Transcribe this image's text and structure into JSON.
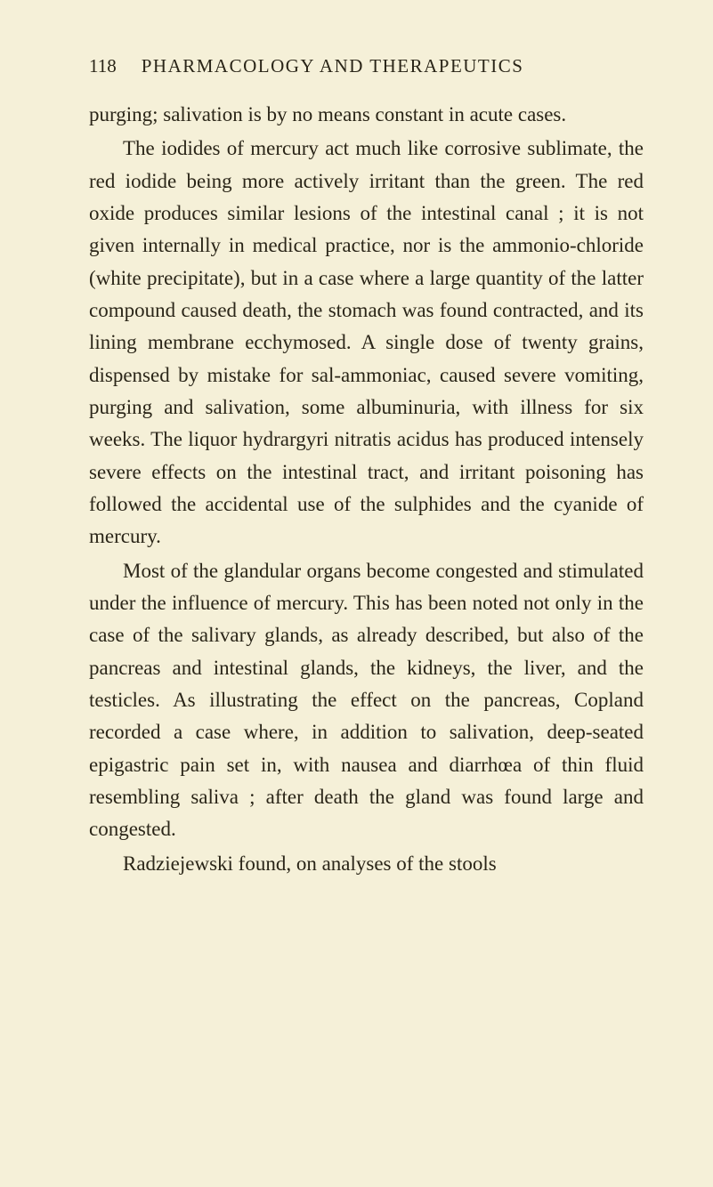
{
  "page": {
    "number": "118",
    "runningTitle": "PHARMACOLOGY AND THERAPEUTICS"
  },
  "paragraphs": {
    "p1": "purging; salivation is by no means constant in acute cases.",
    "p2": "The iodides of mercury act much like corrosive sublimate, the red iodide being more actively irritant than the green. The red oxide produces similar lesions of the intestinal canal ; it is not given internally in medical practice, nor is the ammonio-chloride (white precipitate), but in a case where a large quantity of the latter compound caused death, the stomach was found contracted, and its lining membrane ecchymosed. A single dose of twenty grains, dispensed by mistake for sal-ammoniac, caused severe vomiting, purging and salivation, some albuminuria, with illness for six weeks. The liquor hydrargyri nitratis acidus has produced intensely severe effects on the intestinal tract, and irritant poisoning has followed the accidental use of the sulphides and the cyanide of mercury.",
    "p3": "Most of the glandular organs become congested and stimulated under the influence of mercury. This has been noted not only in the case of the salivary glands, as already described, but also of the pancreas and intestinal glands, the kidneys, the liver, and the testicles. As illustrating the effect on the pancreas, Copland recorded a case where, in addition to salivation, deep-seated epigastric pain set in, with nausea and diarrhœa of thin fluid resembling saliva ; after death the gland was found large and congested.",
    "p4": "Radziejewski found, on analyses of the stools"
  },
  "style": {
    "backgroundColor": "#f5f0d8",
    "textColor": "#2a2518",
    "bodyFontSize": 23,
    "headerFontSize": 21,
    "lineHeight": 1.58,
    "pageWidth": 801,
    "pageHeight": 1334
  }
}
